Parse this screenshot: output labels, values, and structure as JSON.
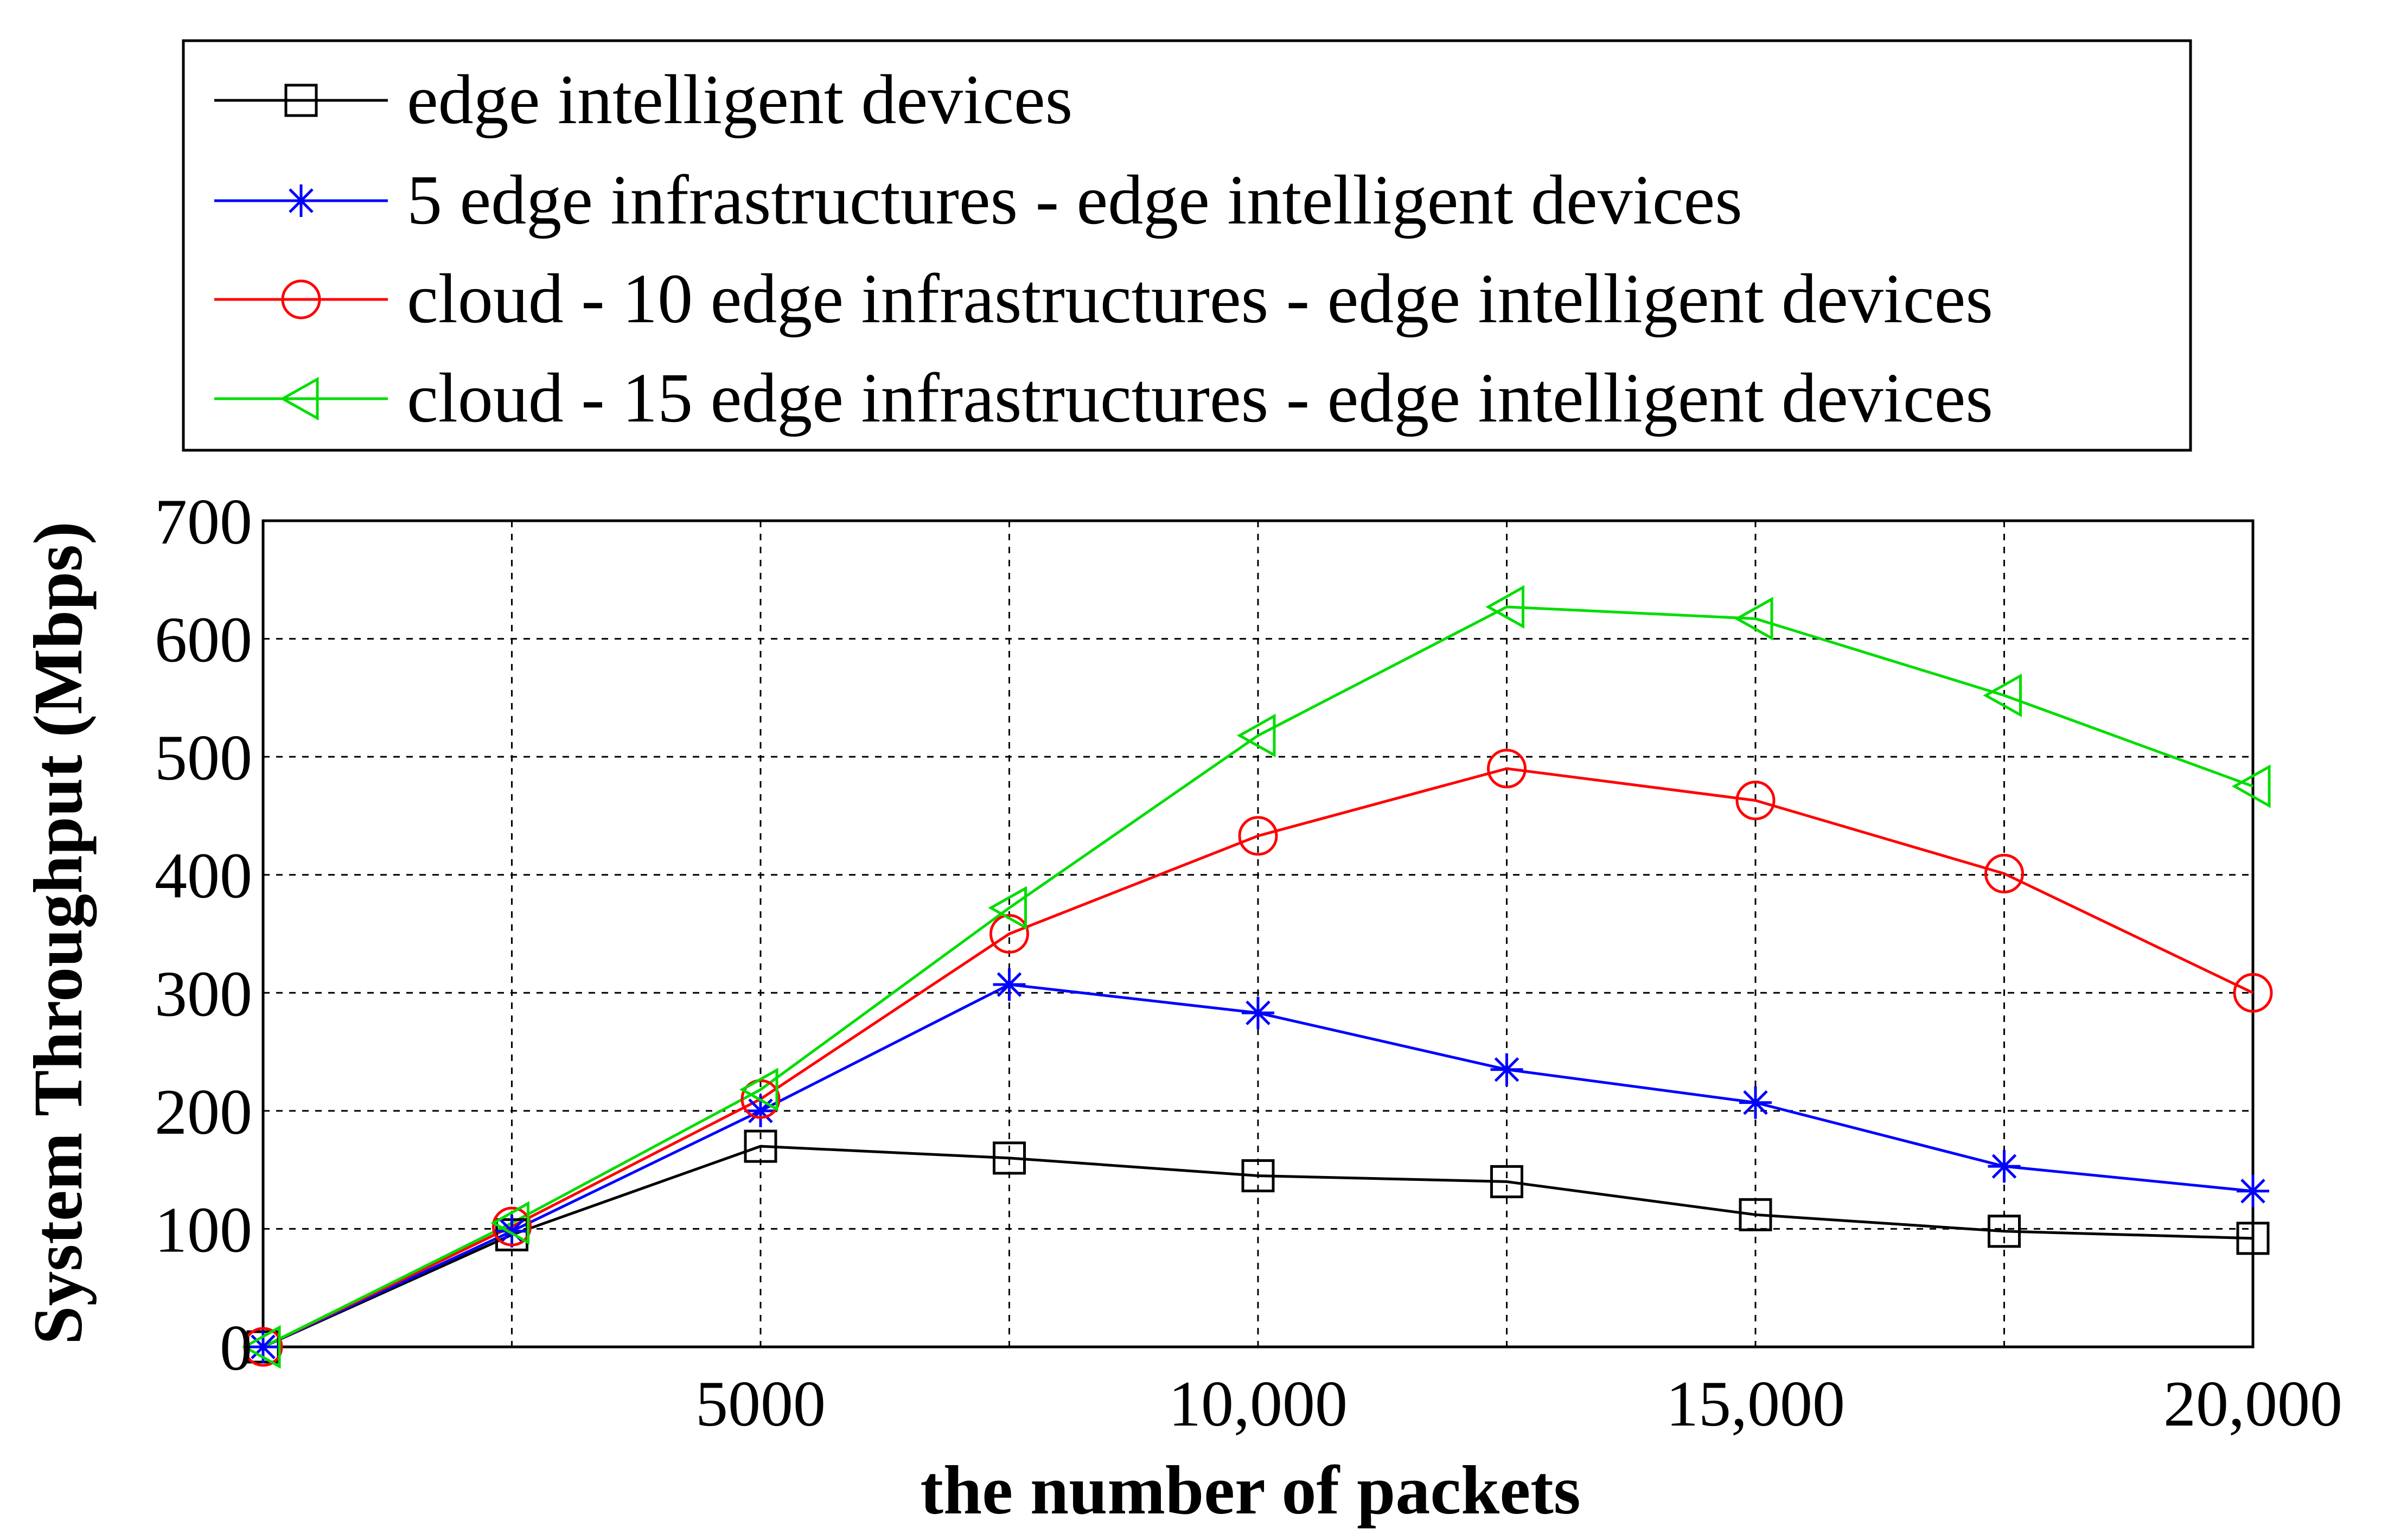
{
  "chart_data": {
    "type": "line",
    "title": "",
    "xlabel": "the number of packets",
    "ylabel": "System Throughput (Mbps)",
    "xlim": [
      0,
      20000
    ],
    "ylim": [
      0,
      700
    ],
    "x_ticks": [
      5000,
      10000,
      15000,
      20000
    ],
    "x_tick_labels": [
      "5000",
      "10,000",
      "15,000",
      "20,000"
    ],
    "y_ticks": [
      0,
      100,
      200,
      300,
      400,
      500,
      600,
      700
    ],
    "y_tick_labels": [
      "0",
      "100",
      "200",
      "300",
      "400",
      "500",
      "600",
      "700"
    ],
    "grid": true,
    "legend_position": "top",
    "x": [
      0,
      2500,
      5000,
      7500,
      10000,
      12500,
      15000,
      17500,
      20000
    ],
    "series": [
      {
        "name": "edge intelligent devices",
        "color": "#000000",
        "marker": "square",
        "values": [
          0,
          95,
          170,
          160,
          145,
          140,
          112,
          98,
          92
        ]
      },
      {
        "name": "5 edge infrastructures - edge intelligent devices",
        "color": "#0000ff",
        "marker": "asterisk",
        "values": [
          0,
          98,
          200,
          307,
          283,
          235,
          207,
          153,
          132
        ]
      },
      {
        "name": "cloud - 10 edge infrastructures - edge intelligent devices",
        "color": "#ff0000",
        "marker": "circle",
        "values": [
          0,
          102,
          210,
          350,
          433,
          490,
          463,
          401,
          300
        ]
      },
      {
        "name": "cloud - 15 edge infrastructures - edge intelligent devices",
        "color": "#00dd00",
        "marker": "triangle-left",
        "values": [
          0,
          105,
          218,
          372,
          518,
          627,
          617,
          552,
          475
        ]
      }
    ]
  }
}
